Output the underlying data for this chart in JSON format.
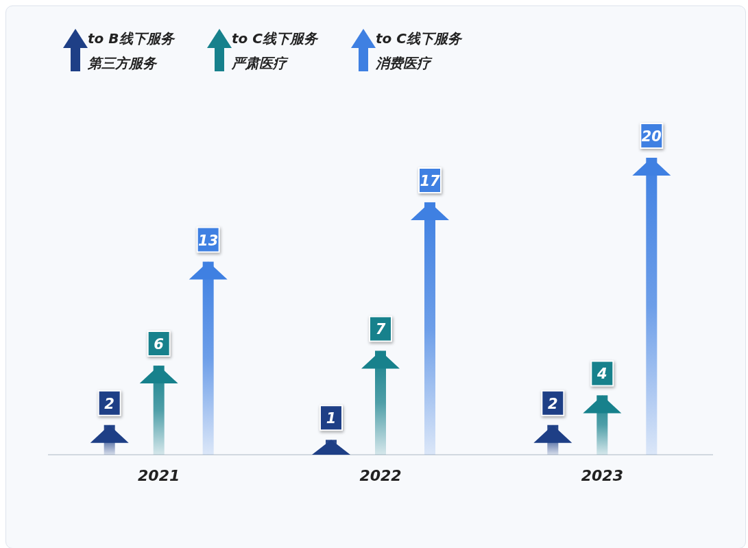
{
  "chart_data": {
    "type": "bar",
    "categories": [
      "2021",
      "2022",
      "2023"
    ],
    "series": [
      {
        "name": "to B线下服务第三方服务",
        "color": "#1e3f86",
        "values": [
          2,
          1,
          2
        ]
      },
      {
        "name": "to C线下服务严肃医疗",
        "color": "#17818c",
        "values": [
          6,
          7,
          4
        ]
      },
      {
        "name": "to C线下服务消费医疗",
        "color": "#3f80e2",
        "values": [
          13,
          17,
          20
        ]
      }
    ],
    "data_labels": true,
    "legend": "top left"
  }
}
